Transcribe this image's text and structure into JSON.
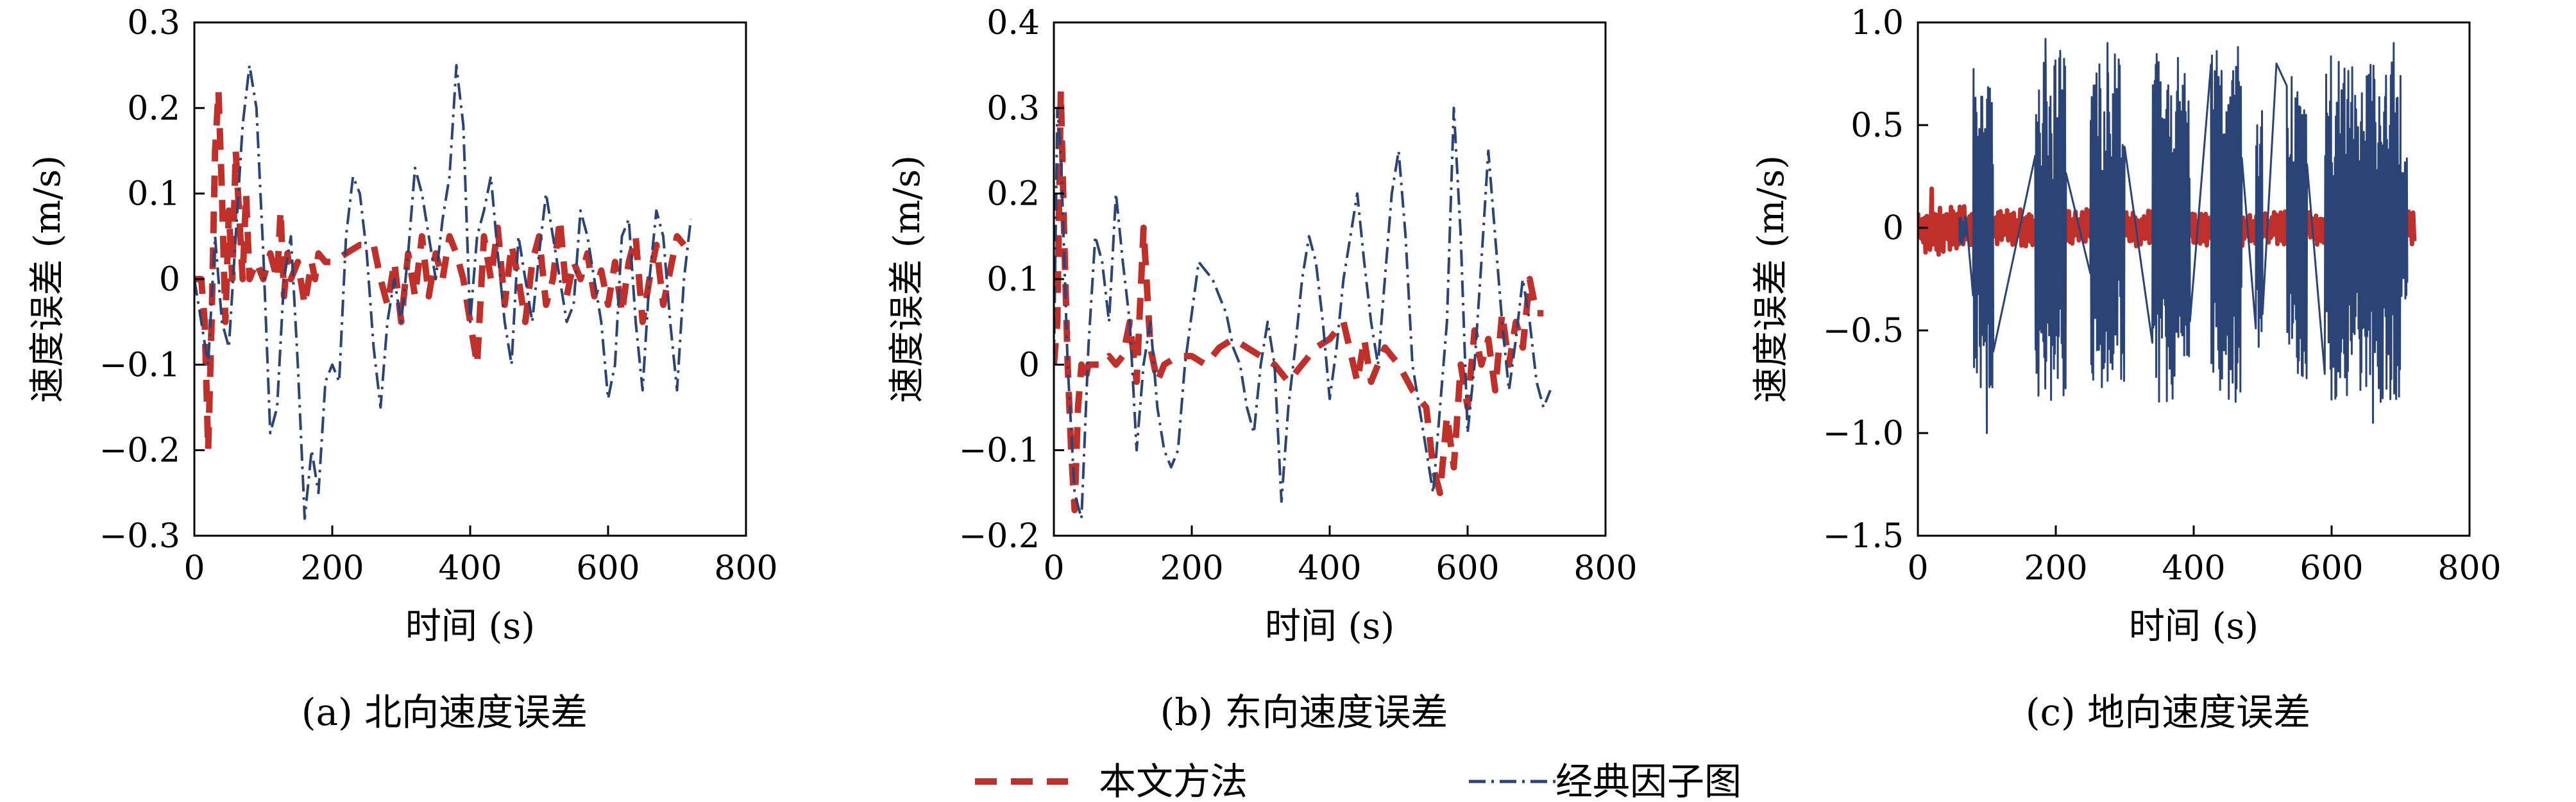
{
  "colors": {
    "series_red": "#c0302b",
    "series_blue": "#2b4478",
    "axis": "#000000"
  },
  "legend": {
    "placement": "bottom-center",
    "items": [
      {
        "name": "本文方法",
        "style": "dashed",
        "color": "#c0302b"
      },
      {
        "name": "经典因子图",
        "style": "dash-dot",
        "color": "#2b4478"
      }
    ]
  },
  "chart_data": [
    {
      "type": "line",
      "caption": "(a) 北向速度误差",
      "xlabel": "时间 (s)",
      "ylabel": "速度误差 (m/s)",
      "xlim": [
        0,
        800
      ],
      "ylim": [
        -0.3,
        0.3
      ],
      "xticks": [
        "0",
        "200",
        "400",
        "600",
        "800"
      ],
      "yticks": [
        "−0.3",
        "−0.2",
        "−0.1",
        "0",
        "0.1",
        "0.2",
        "0.3"
      ],
      "grid": false,
      "series": [
        {
          "name": "本文方法",
          "x": [
            0,
            10,
            15,
            20,
            25,
            30,
            35,
            40,
            45,
            50,
            55,
            60,
            70,
            75,
            80,
            90,
            100,
            110,
            120,
            125,
            130,
            135,
            140,
            150,
            160,
            170,
            175,
            180,
            190,
            200,
            220,
            240,
            260,
            270,
            280,
            290,
            300,
            310,
            320,
            330,
            340,
            350,
            360,
            370,
            380,
            390,
            400,
            410,
            420,
            430,
            440,
            450,
            460,
            470,
            480,
            490,
            500,
            510,
            520,
            530,
            540,
            550,
            560,
            570,
            580,
            590,
            600,
            610,
            620,
            630,
            640,
            650,
            660,
            670,
            680,
            690,
            700,
            710
          ],
          "y": [
            0.0,
            0.0,
            -0.05,
            -0.2,
            -0.05,
            0.15,
            0.22,
            0.1,
            -0.05,
            0.08,
            0.0,
            0.15,
            0.0,
            0.1,
            0.0,
            0.02,
            0.0,
            0.03,
            0.0,
            0.08,
            -0.02,
            0.03,
            0.0,
            0.02,
            -0.03,
            0.02,
            0.0,
            0.03,
            0.02,
            0.02,
            0.03,
            0.04,
            0.04,
            0.0,
            -0.03,
            0.02,
            -0.05,
            0.03,
            -0.02,
            0.05,
            -0.02,
            0.03,
            0.0,
            0.05,
            0.03,
            0.0,
            -0.05,
            -0.1,
            0.05,
            0.0,
            0.06,
            -0.03,
            0.04,
            0.0,
            -0.05,
            0.02,
            0.05,
            -0.03,
            0.0,
            0.07,
            -0.02,
            0.02,
            0.0,
            0.03,
            -0.02,
            0.01,
            -0.03,
            0.02,
            -0.04,
            0.02,
            0.05,
            -0.05,
            0.0,
            0.04,
            -0.03,
            0.01,
            0.05,
            0.04
          ]
        },
        {
          "name": "经典因子图",
          "x": [
            0,
            10,
            20,
            30,
            40,
            50,
            60,
            70,
            80,
            90,
            100,
            110,
            120,
            130,
            140,
            150,
            160,
            170,
            180,
            190,
            200,
            210,
            220,
            230,
            240,
            250,
            260,
            270,
            280,
            290,
            300,
            310,
            320,
            330,
            340,
            350,
            360,
            370,
            380,
            390,
            400,
            410,
            420,
            430,
            440,
            450,
            460,
            470,
            480,
            490,
            500,
            510,
            520,
            530,
            540,
            550,
            560,
            570,
            580,
            590,
            600,
            610,
            620,
            630,
            640,
            650,
            660,
            670,
            680,
            690,
            700,
            710,
            720
          ],
          "y": [
            0.0,
            -0.05,
            -0.1,
            0.05,
            -0.05,
            -0.08,
            0.05,
            0.18,
            0.25,
            0.2,
            0.03,
            -0.18,
            -0.15,
            0.0,
            0.05,
            -0.1,
            -0.28,
            -0.2,
            -0.25,
            -0.12,
            -0.1,
            -0.12,
            0.05,
            0.12,
            0.1,
            0.03,
            -0.08,
            -0.15,
            -0.05,
            0.0,
            -0.05,
            0.03,
            0.13,
            0.1,
            0.05,
            0.0,
            0.07,
            0.12,
            0.25,
            0.18,
            -0.05,
            0.05,
            0.08,
            0.12,
            0.03,
            -0.05,
            -0.1,
            0.05,
            0.0,
            -0.05,
            0.03,
            0.1,
            0.05,
            0.0,
            -0.05,
            -0.03,
            0.08,
            0.05,
            0.0,
            -0.05,
            -0.14,
            -0.1,
            0.05,
            0.07,
            -0.05,
            -0.13,
            0.0,
            0.08,
            0.05,
            -0.05,
            -0.13,
            0.0,
            0.07
          ]
        }
      ]
    },
    {
      "type": "line",
      "caption": "(b) 东向速度误差",
      "xlabel": "时间 (s)",
      "ylabel": "速度误差 (m/s)",
      "xlim": [
        0,
        800
      ],
      "ylim": [
        -0.2,
        0.4
      ],
      "xticks": [
        "0",
        "200",
        "400",
        "600",
        "800"
      ],
      "yticks": [
        "−0.2",
        "−0.1",
        "0",
        "0.1",
        "0.2",
        "0.3",
        "0.4"
      ],
      "grid": false,
      "series": [
        {
          "name": "本文方法",
          "x": [
            0,
            5,
            10,
            15,
            20,
            25,
            30,
            35,
            40,
            45,
            50,
            55,
            60,
            70,
            80,
            90,
            100,
            110,
            120,
            130,
            140,
            150,
            160,
            180,
            200,
            220,
            240,
            260,
            280,
            300,
            320,
            340,
            360,
            380,
            400,
            420,
            440,
            450,
            460,
            470,
            480,
            500,
            520,
            540,
            550,
            560,
            570,
            580,
            590,
            600,
            610,
            620,
            630,
            640,
            650,
            660,
            670,
            680,
            690,
            700,
            710
          ],
          "y": [
            0.0,
            0.05,
            0.32,
            0.15,
            0.0,
            -0.1,
            -0.17,
            -0.05,
            0.0,
            -0.02,
            0.0,
            0.0,
            0.0,
            0.0,
            0.01,
            0.0,
            0.01,
            0.05,
            -0.02,
            0.16,
            0.02,
            -0.02,
            0.0,
            0.01,
            0.01,
            0.0,
            0.02,
            0.03,
            0.02,
            0.01,
            0.0,
            -0.02,
            0.0,
            0.02,
            0.03,
            0.05,
            -0.02,
            0.03,
            -0.02,
            0.0,
            0.02,
            0.0,
            -0.03,
            -0.05,
            -0.12,
            -0.15,
            -0.06,
            -0.12,
            0.0,
            -0.05,
            0.04,
            0.0,
            0.03,
            -0.03,
            0.06,
            0.0,
            0.05,
            0.02,
            0.1,
            0.06,
            0.06
          ]
        },
        {
          "name": "经典因子图",
          "x": [
            0,
            5,
            10,
            20,
            30,
            40,
            50,
            60,
            70,
            80,
            90,
            100,
            110,
            120,
            130,
            140,
            150,
            160,
            170,
            180,
            190,
            200,
            210,
            220,
            230,
            240,
            250,
            260,
            270,
            280,
            290,
            300,
            310,
            320,
            330,
            340,
            350,
            360,
            370,
            380,
            390,
            400,
            410,
            420,
            430,
            440,
            450,
            460,
            470,
            480,
            490,
            500,
            510,
            520,
            530,
            540,
            550,
            560,
            570,
            580,
            590,
            600,
            610,
            620,
            630,
            640,
            650,
            660,
            670,
            680,
            690,
            700,
            710,
            720
          ],
          "y": [
            0.0,
            0.3,
            0.25,
            0.0,
            -0.15,
            -0.18,
            0.02,
            0.15,
            0.12,
            0.05,
            0.2,
            0.12,
            0.05,
            -0.1,
            0.0,
            0.05,
            -0.05,
            -0.1,
            -0.12,
            -0.1,
            0.0,
            0.06,
            0.12,
            0.11,
            0.1,
            0.08,
            0.06,
            0.02,
            0.0,
            -0.05,
            -0.08,
            0.0,
            0.05,
            0.0,
            -0.16,
            -0.05,
            0.02,
            0.1,
            0.15,
            0.12,
            0.05,
            -0.04,
            0.02,
            0.1,
            0.15,
            0.2,
            0.12,
            0.05,
            0.0,
            0.1,
            0.2,
            0.25,
            0.15,
            0.0,
            -0.05,
            -0.1,
            -0.15,
            -0.05,
            0.05,
            0.3,
            0.15,
            -0.08,
            0.0,
            0.12,
            0.25,
            0.15,
            0.05,
            -0.03,
            0.03,
            0.1,
            0.05,
            -0.02,
            -0.05,
            -0.03
          ]
        }
      ]
    },
    {
      "type": "line",
      "caption": "(c) 地向速度误差",
      "xlabel": "时间 (s)",
      "ylabel": "速度误差 (m/s)",
      "xlim": [
        0,
        800
      ],
      "ylim": [
        -1.5,
        1.0
      ],
      "xticks": [
        "0",
        "200",
        "400",
        "600",
        "800"
      ],
      "yticks": [
        "−1.5",
        "−1.0",
        "−0.5",
        "0",
        "0.5",
        "1.0"
      ],
      "grid": false,
      "series": [
        {
          "name": "本文方法",
          "bursts": [
            [
              0,
              70,
              0.12
            ],
            [
              75,
              720,
              0.09
            ]
          ],
          "spikes": [
            [
              20,
              0.19
            ],
            [
              30,
              -0.13
            ],
            [
              95,
              0.1
            ],
            [
              180,
              -0.08
            ],
            [
              340,
              0.08
            ],
            [
              560,
              -0.1
            ],
            [
              680,
              0.12
            ]
          ]
        },
        {
          "name": "经典因子图",
          "bursts": [
            [
              60,
              70,
              0.08
            ],
            [
              80,
              110,
              0.8
            ],
            [
              170,
              215,
              0.88
            ],
            [
              250,
              300,
              0.85
            ],
            [
              340,
              395,
              0.85
            ],
            [
              425,
              470,
              0.9
            ],
            [
              490,
              500,
              0.7
            ],
            [
              535,
              565,
              0.75
            ],
            [
              590,
              700,
              0.85
            ],
            [
              700,
              710,
              0.35
            ]
          ],
          "spikes": [
            [
              100,
              -1.0
            ],
            [
              185,
              0.92
            ],
            [
              275,
              0.9
            ],
            [
              520,
              0.8
            ],
            [
              660,
              -0.95
            ],
            [
              690,
              0.9
            ]
          ]
        }
      ]
    }
  ]
}
